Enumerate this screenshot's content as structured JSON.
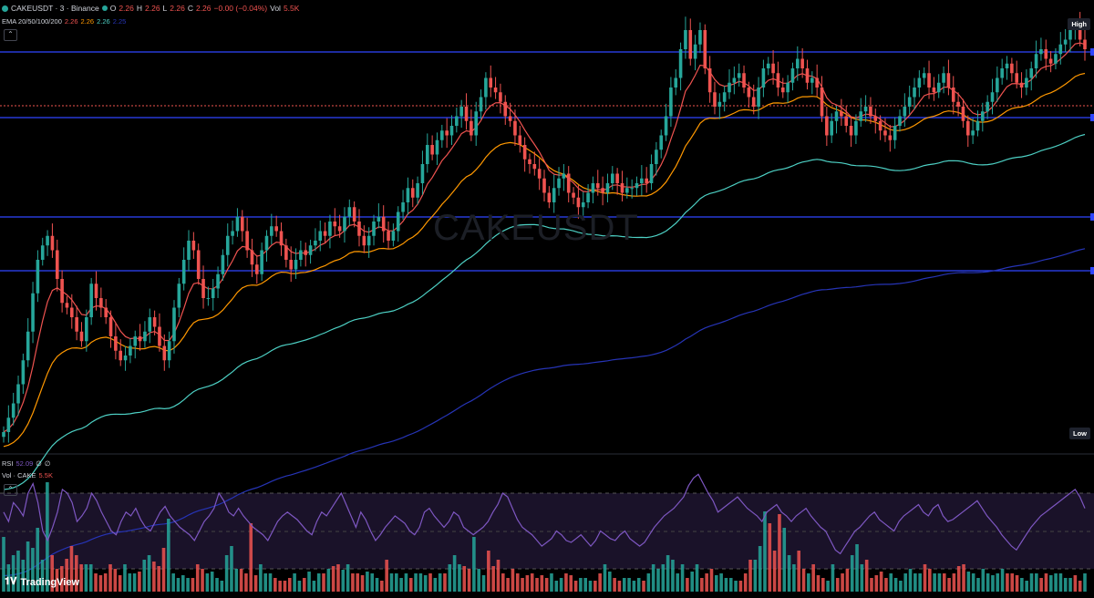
{
  "header": {
    "symbol": "CAKEUSDT · 3 · Binance",
    "open_label": "O",
    "open": "2.26",
    "high_label": "H",
    "high": "2.26",
    "low_label": "L",
    "low": "2.26",
    "close_label": "C",
    "close": "2.26",
    "change": "−0.00 (−0.04%)",
    "vol_label": "Vol",
    "vol": "5.5K"
  },
  "ema": {
    "label": "EMA 20/50/100/200",
    "v20": "2.26",
    "v50": "2.26",
    "v100": "2.26",
    "v200": "2.25"
  },
  "rsi": {
    "label": "RSI",
    "value": "52.09",
    "extra1": "∅",
    "extra2": "∅"
  },
  "volume": {
    "label": "Vol · CAKE",
    "value": "5.5K"
  },
  "badges": {
    "high": "High",
    "low": "Low"
  },
  "watermark": "CAKEUSDT",
  "brand": "TradingView",
  "colors": {
    "up": "#26a69a",
    "down": "#ef5350",
    "ema20": "#ef5350",
    "ema50": "#ff9800",
    "ema100": "#4dd0c4",
    "ema200": "#2634b6",
    "hline": "#2f45ff",
    "rsi": "#7e57c2"
  },
  "chart_data": {
    "type": "candlestick",
    "note": "close path sampled from screenshot (chart y units, higher = higher price)",
    "closes": [
      20,
      35,
      50,
      70,
      95,
      125,
      165,
      200,
      215,
      225,
      210,
      180,
      155,
      150,
      140,
      125,
      115,
      140,
      175,
      160,
      150,
      140,
      120,
      105,
      95,
      100,
      110,
      120,
      115,
      125,
      140,
      130,
      110,
      95,
      115,
      150,
      175,
      200,
      220,
      210,
      180,
      160,
      160,
      170,
      185,
      205,
      225,
      230,
      245,
      230,
      210,
      195,
      185,
      210,
      225,
      235,
      230,
      215,
      200,
      190,
      200,
      210,
      205,
      215,
      220,
      230,
      225,
      240,
      235,
      230,
      245,
      255,
      240,
      225,
      215,
      225,
      240,
      245,
      230,
      220,
      230,
      250,
      260,
      275,
      265,
      280,
      300,
      320,
      310,
      325,
      335,
      330,
      340,
      350,
      360,
      345,
      330,
      355,
      370,
      390,
      380,
      375,
      365,
      350,
      345,
      330,
      320,
      305,
      300,
      295,
      285,
      270,
      260,
      275,
      285,
      290,
      270,
      265,
      255,
      260,
      270,
      280,
      275,
      270,
      280,
      290,
      280,
      270,
      275,
      275,
      280,
      285,
      280,
      300,
      315,
      330,
      350,
      380,
      390,
      420,
      440,
      410,
      425,
      440,
      400,
      375,
      360,
      365,
      375,
      385,
      390,
      395,
      380,
      370,
      360,
      380,
      400,
      405,
      395,
      380,
      375,
      385,
      400,
      410,
      400,
      385,
      390,
      380,
      350,
      330,
      345,
      355,
      350,
      340,
      330,
      345,
      355,
      360,
      350,
      345,
      335,
      330,
      325,
      340,
      350,
      360,
      370,
      380,
      390,
      395,
      380,
      375,
      385,
      395,
      380,
      365,
      360,
      345,
      330,
      335,
      345,
      355,
      365,
      375,
      390,
      400,
      405,
      395,
      385,
      380,
      390,
      400,
      415,
      420,
      410,
      405,
      415,
      425,
      430,
      440,
      445,
      430,
      420
    ],
    "volumes": [
      60,
      30,
      40,
      45,
      35,
      55,
      48,
      70,
      35,
      120,
      40,
      25,
      28,
      36,
      50,
      40,
      30,
      30,
      30,
      20,
      18,
      20,
      30,
      25,
      18,
      30,
      20,
      20,
      22,
      35,
      40,
      33,
      28,
      48,
      80,
      20,
      15,
      18,
      15,
      15,
      30,
      25,
      20,
      22,
      15,
      12,
      40,
      50,
      25,
      25,
      20,
      75,
      18,
      30,
      20,
      20,
      15,
      12,
      12,
      15,
      20,
      12,
      15,
      22,
      12,
      20,
      20,
      25,
      28,
      30,
      24,
      30,
      20,
      20,
      18,
      22,
      20,
      15,
      12,
      35,
      20,
      20,
      15,
      20,
      15,
      20,
      20,
      18,
      20,
      15,
      20,
      20,
      30,
      40,
      30,
      28,
      25,
      60,
      25,
      18,
      45,
      28,
      35,
      20,
      15,
      25,
      20,
      15,
      18,
      20,
      15,
      18,
      15,
      20,
      12,
      15,
      20,
      18,
      12,
      15,
      15,
      12,
      12,
      20,
      30,
      22,
      15,
      12,
      15,
      15,
      12,
      15,
      12,
      20,
      30,
      25,
      30,
      40,
      35,
      20,
      30,
      15,
      22,
      30,
      15,
      20,
      25,
      18,
      20,
      15,
      15,
      12,
      12,
      20,
      35,
      35,
      50,
      88,
      75,
      45,
      85,
      70,
      40,
      30,
      45,
      25,
      20,
      30,
      18,
      15,
      12,
      30,
      15,
      20,
      25,
      40,
      52,
      30,
      35,
      15,
      18,
      22,
      15,
      20,
      15,
      12,
      20,
      25,
      20,
      20,
      30,
      25,
      20,
      20,
      20,
      15,
      20,
      28,
      30,
      22,
      20,
      15,
      25,
      20,
      18,
      20,
      25,
      20,
      20,
      18,
      15,
      12,
      20,
      20,
      15,
      20,
      18,
      20,
      20,
      15,
      15,
      18,
      12,
      20
    ],
    "rsi": [
      60,
      55,
      65,
      62,
      58,
      70,
      75,
      65,
      50,
      45,
      52,
      60,
      72,
      70,
      65,
      55,
      58,
      62,
      70,
      66,
      60,
      55,
      50,
      48,
      55,
      60,
      58,
      62,
      56,
      52,
      50,
      55,
      60,
      63,
      58,
      55,
      52,
      50,
      48,
      45,
      50,
      55,
      58,
      62,
      70,
      66,
      60,
      58,
      62,
      58,
      55,
      52,
      50,
      48,
      45,
      50,
      55,
      58,
      60,
      58,
      56,
      53,
      50,
      48,
      55,
      60,
      58,
      62,
      66,
      70,
      64,
      58,
      52,
      60,
      56,
      50,
      45,
      48,
      52,
      55,
      58,
      56,
      54,
      50,
      48,
      52,
      60,
      62,
      58,
      55,
      52,
      55,
      60,
      58,
      52,
      50,
      48,
      50,
      52,
      55,
      60,
      64,
      70,
      68,
      62,
      56,
      52,
      50,
      48,
      45,
      42,
      44,
      46,
      50,
      48,
      45,
      44,
      46,
      48,
      45,
      42,
      45,
      50,
      48,
      46,
      45,
      48,
      50,
      46,
      44,
      42,
      44,
      48,
      52,
      55,
      58,
      60,
      62,
      65,
      68,
      74,
      78,
      80,
      75,
      70,
      66,
      60,
      62,
      64,
      66,
      68,
      65,
      62,
      60,
      58,
      55,
      60,
      62,
      64,
      60,
      58,
      55,
      58,
      60,
      62,
      58,
      55,
      52,
      50,
      45,
      40,
      38,
      42,
      46,
      50,
      52,
      55,
      58,
      60,
      56,
      54,
      52,
      50,
      55,
      58,
      60,
      62,
      64,
      60,
      58,
      62,
      64,
      58,
      55,
      56,
      58,
      60,
      62,
      64,
      66,
      62,
      58,
      55,
      52,
      48,
      45,
      42,
      40,
      44,
      48,
      52,
      55,
      58,
      60,
      62,
      64,
      66,
      68,
      70,
      72,
      68,
      62
    ]
  }
}
